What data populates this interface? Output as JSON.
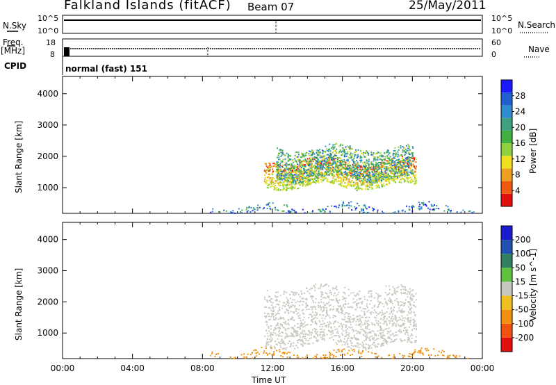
{
  "header": {
    "site": "Falkland Islands (fitACF)",
    "beam": "Beam 07",
    "date": "25/May/2011"
  },
  "status_panels": {
    "nsky_label": "N.Sky",
    "nsky_ticks": [
      "10^5",
      "10^0"
    ],
    "nsearch_label": "N.Search",
    "nsearch_ticks": [
      "10^5",
      "10^0"
    ],
    "freq_label_1": "Freq.",
    "freq_label_2": "[MHz]",
    "freq_ticks": [
      "18",
      "8"
    ],
    "nave_label": "Nave",
    "nave_ticks": [
      "60",
      "0"
    ],
    "cpid_label": "CPID",
    "cpid_value": "normal (fast) 151"
  },
  "chart_data": [
    {
      "type": "heatmap",
      "name": "power",
      "ylabel": "Slant Range [km]",
      "yticks": [
        "1000",
        "2000",
        "3000",
        "4000"
      ],
      "ylim": [
        180,
        4550
      ],
      "xlim_hours": [
        0,
        24
      ],
      "colorbar": {
        "label": "Power [dB]",
        "ticks": [
          "4",
          "8",
          "12",
          "16",
          "20",
          "24",
          "28"
        ],
        "colors": [
          "#1a1aff",
          "#1f5fd0",
          "#2e8bd0",
          "#3fa080",
          "#40b040",
          "#90d040",
          "#f0e020",
          "#f0a020",
          "#f05a10",
          "#e01010"
        ]
      },
      "regions": [
        {
          "t0": 11.5,
          "t1": 20.2,
          "r0": 1050,
          "r1": 1900,
          "value": 22
        },
        {
          "t0": 12.2,
          "t1": 20.0,
          "r0": 1300,
          "r1": 2300,
          "value": 12
        },
        {
          "t0": 8.4,
          "t1": 23.5,
          "r0": 180,
          "r1": 450,
          "value": 6
        }
      ]
    },
    {
      "type": "heatmap",
      "name": "velocity",
      "ylabel": "Slant Range [km]",
      "yticks": [
        "1000",
        "2000",
        "3000",
        "4000"
      ],
      "ylim": [
        180,
        4550
      ],
      "xlim_hours": [
        0,
        24
      ],
      "xticks": [
        "00:00",
        "04:00",
        "08:00",
        "12:00",
        "16:00",
        "20:00",
        "00:00"
      ],
      "xlabel": "Time UT",
      "colorbar": {
        "label": "Velocity [m s^-1]",
        "ticks": [
          "200",
          "100",
          "50",
          "15",
          "-15",
          "-50",
          "-100",
          "-200"
        ],
        "colors": [
          "#1a1ad0",
          "#2050b0",
          "#308060",
          "#60c040",
          "#c8c8c0",
          "#f0c020",
          "#f09010",
          "#f05010",
          "#e01010"
        ]
      },
      "regions": [
        {
          "t0": 11.5,
          "t1": 20.2,
          "r0": 600,
          "r1": 2500,
          "value": 0
        },
        {
          "t0": 8.4,
          "t1": 23.5,
          "r0": 180,
          "r1": 450,
          "value": -60
        }
      ]
    }
  ]
}
